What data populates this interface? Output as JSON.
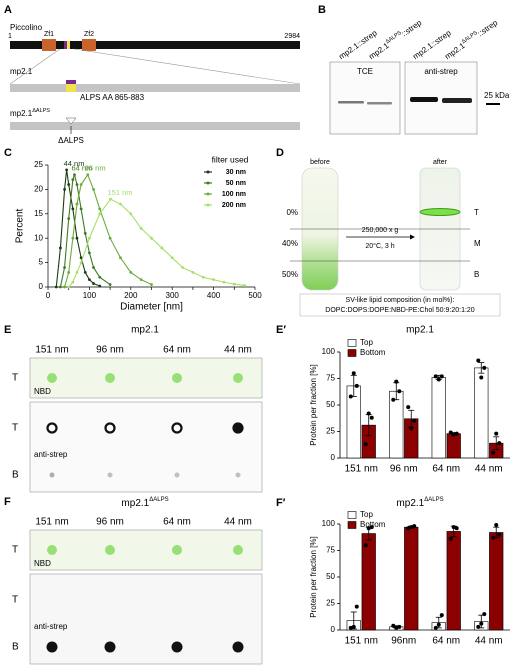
{
  "panel_a": {
    "label": "A",
    "protein": "Piccolino",
    "start": "1",
    "end": "2984",
    "domains": [
      "Zf1",
      "Zf2"
    ],
    "construct": "mp2.1",
    "alps": "ALPS AA 865-883",
    "construct_deleted": {
      "text": "mp2.1",
      "sup": "ΔALPS"
    },
    "deletion": "ΔALPS"
  },
  "panel_b": {
    "label": "B",
    "lanes": [
      {
        "text": "mp2.1::strep"
      },
      {
        "text": "mp2.1",
        "sup": "ΔALPS",
        "rest": "::strep"
      },
      {
        "text": "mp2.1::strep"
      },
      {
        "text": "mp2.1",
        "sup": "ΔALPS",
        "rest": "::strep"
      }
    ],
    "blots": [
      "TCE",
      "anti-strep"
    ],
    "marker": "25 kDa"
  },
  "panel_d": {
    "label": "D",
    "before": "before",
    "after": "after",
    "gradient": [
      "0%",
      "40%",
      "50%"
    ],
    "fractions": [
      "T",
      "M",
      "B"
    ],
    "spin": [
      "250,000 x g",
      "20°C, 3 h"
    ],
    "lipids": [
      "SV-like lipid composition (in mol%):",
      "DOPC:DOPS:DOPE:NBD-PE:Chol 50:9:20:1:20"
    ]
  },
  "panel_e": {
    "label": "E",
    "title": "mp2.1",
    "columns": [
      "151 nm",
      "96 nm",
      "64 nm",
      "44 nm"
    ],
    "rows": [
      "T",
      "T",
      "B"
    ],
    "stains": [
      "NBD",
      "anti-strep"
    ]
  },
  "panel_f": {
    "label": "F",
    "title": "mp2.1",
    "title_sup": "ΔALPS",
    "columns": [
      "151 nm",
      "96 nm",
      "64 nm",
      "44 nm"
    ],
    "rows": [
      "T",
      "T",
      "B"
    ],
    "stains": [
      "NBD",
      "anti-strep"
    ]
  },
  "chart_data": [
    {
      "type": "line",
      "label": "C",
      "xlabel": "Diameter [nm]",
      "ylabel": "Percent",
      "xlim": [
        0,
        500
      ],
      "xticks": [
        0,
        50,
        100,
        150,
        200,
        250,
        300,
        350,
        400,
        450,
        500
      ],
      "ylim": [
        0,
        25
      ],
      "yticks": [
        0,
        5,
        10,
        15,
        20,
        25
      ],
      "legend": "upper right",
      "legend_title": "filter used",
      "series": [
        {
          "name": "30 nm",
          "color": "#1b3b12",
          "x": [
            20,
            30,
            40,
            45,
            50,
            60,
            70,
            80,
            90,
            100,
            110,
            125
          ],
          "values": [
            0,
            8,
            20,
            24,
            21,
            16,
            10,
            6,
            3,
            1.5,
            0.7,
            0.2
          ]
        },
        {
          "name": "50 nm",
          "color": "#3d7a24",
          "x": [
            30,
            40,
            50,
            60,
            64,
            70,
            80,
            90,
            100,
            110,
            125,
            150
          ],
          "values": [
            0,
            4,
            14,
            22,
            23,
            21,
            16,
            11,
            7,
            4,
            2,
            0.5
          ]
        },
        {
          "name": "100 nm",
          "color": "#6aac3c",
          "x": [
            40,
            50,
            60,
            70,
            80,
            96,
            110,
            125,
            150,
            175,
            200,
            225,
            250
          ],
          "values": [
            0,
            3,
            10,
            17,
            21,
            23,
            20,
            16,
            10,
            6,
            3,
            1.5,
            0.5
          ]
        },
        {
          "name": "200 nm",
          "color": "#a6e06a",
          "x": [
            50,
            60,
            70,
            80,
            100,
            125,
            151,
            175,
            200,
            225,
            250,
            275,
            300,
            325,
            350,
            375,
            400,
            425,
            450,
            475
          ],
          "values": [
            0,
            1,
            3,
            5,
            10,
            15,
            18,
            17,
            15,
            12,
            10,
            8,
            6,
            4,
            3,
            2,
            1.5,
            1,
            0.6,
            0.3
          ]
        }
      ],
      "annotations": [
        "44 nm",
        "64 nm",
        "96 nm",
        "151 nm"
      ]
    },
    {
      "type": "bar",
      "label": "E′",
      "title": "mp2.1",
      "ylabel": "Protein per fraction [%]",
      "categories": [
        "151 nm",
        "96 nm",
        "64 nm",
        "44 nm"
      ],
      "ylim": [
        0,
        100
      ],
      "yticks": [
        0,
        25,
        50,
        75,
        100
      ],
      "legend": "upper left",
      "series": [
        {
          "name": "Top",
          "color": "#ffffff",
          "values": [
            68,
            63,
            76,
            85
          ],
          "errors": [
            10,
            8,
            2,
            5
          ],
          "points": [
            [
              58,
              80,
              68
            ],
            [
              55,
              72,
              63
            ],
            [
              77,
              74,
              77
            ],
            [
              92,
              76,
              85
            ]
          ]
        },
        {
          "name": "Bottom",
          "color": "#8b0000",
          "values": [
            31,
            37,
            23,
            14
          ],
          "errors": [
            10,
            8,
            1,
            6
          ],
          "points": [
            [
              13,
              42,
              38
            ],
            [
              48,
              28,
              35
            ],
            [
              24,
              22,
              23
            ],
            [
              5,
              23,
              14
            ]
          ]
        }
      ]
    },
    {
      "type": "bar",
      "label": "F′",
      "title": "mp2.1",
      "title_sup": "ΔALPS",
      "ylabel": "Protein per fraction [%]",
      "categories": [
        "151 nm",
        "96nm",
        "64 nm",
        "44 nm"
      ],
      "ylim": [
        0,
        100
      ],
      "yticks": [
        0,
        25,
        50,
        75,
        100
      ],
      "legend": "upper left",
      "series": [
        {
          "name": "Top",
          "color": "#ffffff",
          "values": [
            9,
            3,
            7,
            8
          ],
          "errors": [
            8,
            1,
            5,
            6
          ],
          "points": [
            [
              2,
              3,
              22
            ],
            [
              4,
              2,
              3
            ],
            [
              2,
              5,
              14
            ],
            [
              3,
              6,
              15
            ]
          ]
        },
        {
          "name": "Bottom",
          "color": "#8b0000",
          "values": [
            91,
            97,
            93,
            92
          ],
          "errors": [
            6,
            1,
            5,
            5
          ],
          "points": [
            [
              80,
              96,
              97
            ],
            [
              96,
              97,
              98
            ],
            [
              86,
              97,
              96
            ],
            [
              87,
              99,
              90
            ]
          ]
        }
      ]
    }
  ]
}
